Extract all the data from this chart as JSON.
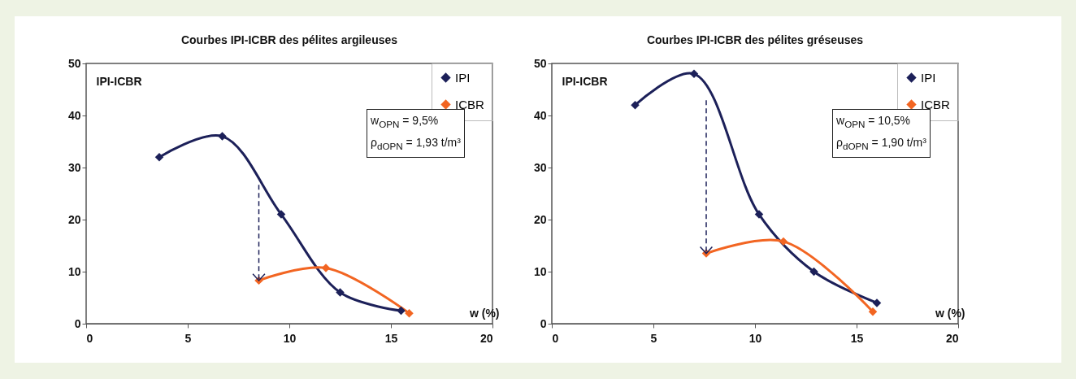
{
  "chart_data": [
    {
      "type": "line",
      "title": "Courbes IPI-ICBR des pélites argileuses",
      "xlabel": "w (%)",
      "ylabel": "IPI-ICBR",
      "xlim": [
        0,
        20
      ],
      "xticks": [
        0,
        5,
        10,
        15,
        20
      ],
      "ylim": [
        0,
        50
      ],
      "yticks": [
        0,
        10,
        20,
        30,
        40,
        50
      ],
      "grid": false,
      "legend": "top right",
      "marker": "diamond",
      "line_style": "solid",
      "annotations": [
        "w$_{OPN}$ = 9,5%",
        "ρ$_{dOPN}$ = 1,93 t/m³"
      ],
      "series": [
        {
          "name": "IPI",
          "color": "#1c2059",
          "x": [
            3.6,
            6.7,
            9.6,
            12.5,
            15.5
          ],
          "values": [
            32,
            36,
            21,
            6,
            2.5
          ]
        },
        {
          "name": "ICBR",
          "color": "#f26522",
          "x": [
            8.5,
            11.8,
            15.9
          ],
          "values": [
            8.3,
            10.7,
            2
          ]
        }
      ]
    },
    {
      "type": "line",
      "title": "Courbes IPI-ICBR des pélites gréseuses",
      "xlabel": "w (%)",
      "ylabel": "IPI-ICBR",
      "xlim": [
        0,
        20
      ],
      "xticks": [
        0,
        5,
        10,
        15,
        20
      ],
      "ylim": [
        0,
        50
      ],
      "yticks": [
        0,
        10,
        20,
        30,
        40,
        50
      ],
      "grid": false,
      "legend": "top right",
      "marker": "diamond",
      "line_style": "solid",
      "annotations": [
        "w$_{OPN}$ = 10,5%",
        "ρ$_{dOPN}$ = 1,90 t/m³"
      ],
      "series": [
        {
          "name": "IPI",
          "color": "#1c2059",
          "x": [
            4.1,
            7.0,
            10.2,
            12.9,
            16.0
          ],
          "values": [
            42,
            48,
            21,
            10,
            4
          ]
        },
        {
          "name": "ICBR",
          "color": "#f26522",
          "x": [
            7.6,
            11.4,
            15.8
          ],
          "values": [
            13.5,
            15.8,
            2.3
          ]
        }
      ]
    }
  ]
}
